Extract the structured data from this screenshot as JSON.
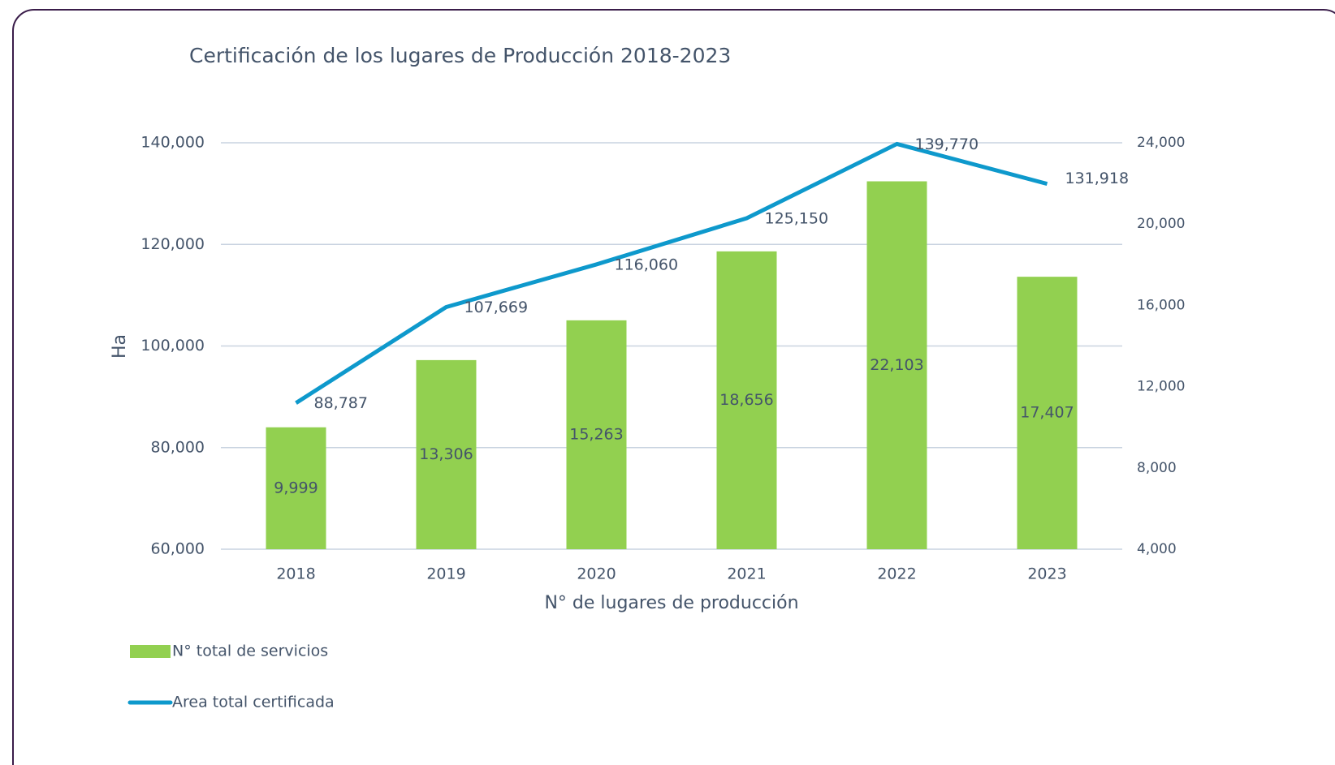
{
  "chart_data": {
    "type": "bar-line",
    "title": "Certificación de los lugares de Producción 2018-2023",
    "x_label": "N° de lugares de producción",
    "y_label": "Ha",
    "categories": [
      "2018",
      "2019",
      "2020",
      "2021",
      "2022",
      "2023"
    ],
    "series": [
      {
        "name": "N° total de servicios",
        "type": "bar",
        "axis": "y2",
        "color": "#92d050",
        "values": [
          9999,
          13306,
          15263,
          18656,
          22103,
          17407
        ],
        "value_labels": [
          "9,999",
          "13,306",
          "15,263",
          "18,656",
          "22,103",
          "17,407"
        ]
      },
      {
        "name": "Area total certificada",
        "type": "line",
        "axis": "y",
        "color": "#0e99cc",
        "values": [
          88787,
          107669,
          116060,
          125150,
          139770,
          131918
        ],
        "value_labels": [
          "88,787",
          "107,669",
          "116,060",
          "125,150",
          "139,770",
          "131,918"
        ]
      }
    ],
    "ylim": [
      60000,
      140000
    ],
    "yticks": [
      {
        "value": 60000,
        "label": "60,000"
      },
      {
        "value": 80000,
        "label": "80,000"
      },
      {
        "value": 100000,
        "label": "100,000"
      },
      {
        "value": 120000,
        "label": "120,000"
      },
      {
        "value": 140000,
        "label": "140,000"
      }
    ],
    "y2lim": [
      4000,
      24000
    ],
    "y2ticks": [
      {
        "value": 4000,
        "label": "4,000"
      },
      {
        "value": 8000,
        "label": "8,000"
      },
      {
        "value": 12000,
        "label": "12,000"
      },
      {
        "value": 16000,
        "label": "16,000"
      },
      {
        "value": 20000,
        "label": "20,000"
      },
      {
        "value": 24000,
        "label": "24,000"
      }
    ],
    "grid": true,
    "legend": "bottom-left"
  }
}
